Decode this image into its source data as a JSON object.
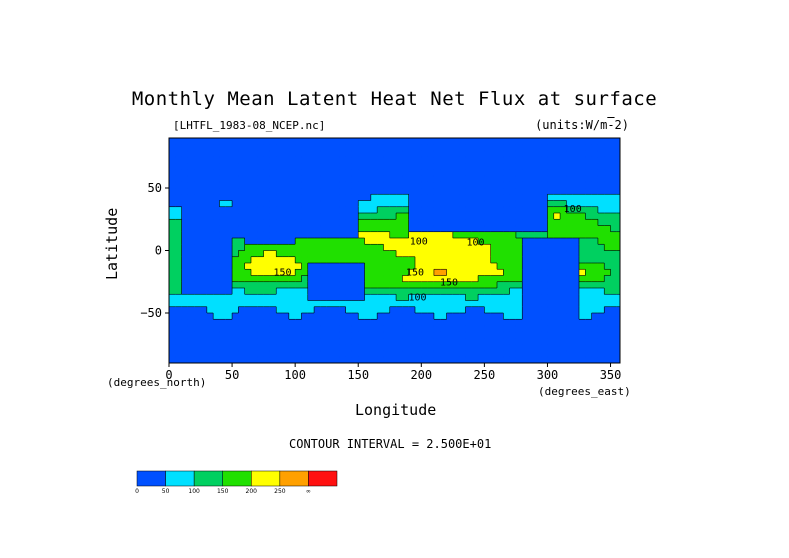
{
  "chart_data": {
    "type": "heatmap",
    "title": "Monthly Mean Latent Heat Net Flux at surface",
    "file_label": "[LHTFL_1983-08_NCEP.nc]",
    "units_label": "(units:W/m^-2)",
    "xlabel": "Longitude",
    "ylabel": "Latitude",
    "x_unit_label": "(degrees_east)",
    "y_unit_label": "(degrees_north)",
    "xlim": [
      0,
      357.5
    ],
    "ylim": [
      -90,
      90
    ],
    "x_ticks": [
      0,
      50,
      100,
      150,
      200,
      250,
      300,
      350
    ],
    "y_ticks": [
      50,
      0,
      -50
    ],
    "contour_interval_label": "CONTOUR INTERVAL = 2.500E+01",
    "contour_labels": [
      {
        "text": "100",
        "lon": 198,
        "lat": 5
      },
      {
        "text": "100",
        "lon": 243,
        "lat": 4
      },
      {
        "text": "150",
        "lon": 90,
        "lat": -20
      },
      {
        "text": "150",
        "lon": 195,
        "lat": -20
      },
      {
        "text": "150",
        "lon": 222,
        "lat": -28
      },
      {
        "text": "100",
        "lon": 197,
        "lat": -40
      },
      {
        "text": "100",
        "lon": 320,
        "lat": 31
      }
    ],
    "color_levels": [
      0,
      50,
      100,
      150,
      200,
      250,
      300
    ],
    "color_level_labels": [
      "0",
      "50",
      "100",
      "150",
      "200",
      "250",
      "∞"
    ],
    "colors": [
      "#0050ff",
      "#00e0ff",
      "#00d060",
      "#20e000",
      "#ffff00",
      "#ffa000",
      "#ff1010"
    ],
    "land_color": "#0050ff",
    "contour_color": "#000000",
    "grid": false,
    "legend": "bottom-left"
  }
}
